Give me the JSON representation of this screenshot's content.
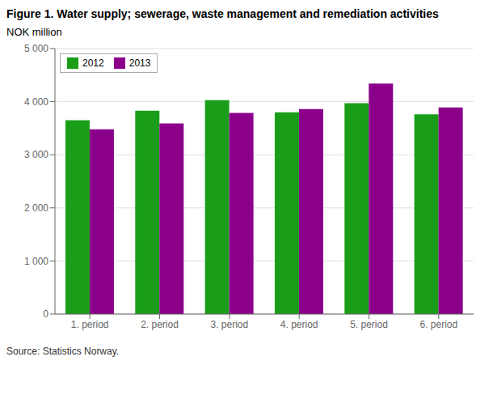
{
  "chart_data": {
    "type": "bar",
    "title": "Figure 1. Water supply; sewerage, waste management and remediation activities",
    "ylabel": "NOK million",
    "annotations": [
      "Source: Statistics Norway."
    ],
    "categories": [
      "1. period",
      "2. period",
      "3. period",
      "4. period",
      "5. period",
      "6. period"
    ],
    "series": [
      {
        "name": "2012",
        "color": "#1a9e1a",
        "values": [
          3650,
          3830,
          4030,
          3800,
          3970,
          3760
        ]
      },
      {
        "name": "2013",
        "color": "#8b008b",
        "values": [
          3480,
          3590,
          3790,
          3860,
          4340,
          3890
        ]
      }
    ],
    "ylim": [
      0,
      5000
    ],
    "yticks": [
      0,
      {
        "value": 1000,
        "label": "1 000"
      },
      {
        "value": 2000,
        "label": "2 000"
      },
      {
        "value": 3000,
        "label": "3 000"
      },
      {
        "value": 4000,
        "label": "4 000"
      },
      {
        "value": 5000,
        "label": "5 000"
      }
    ],
    "grid": true,
    "legend": "upper left"
  }
}
